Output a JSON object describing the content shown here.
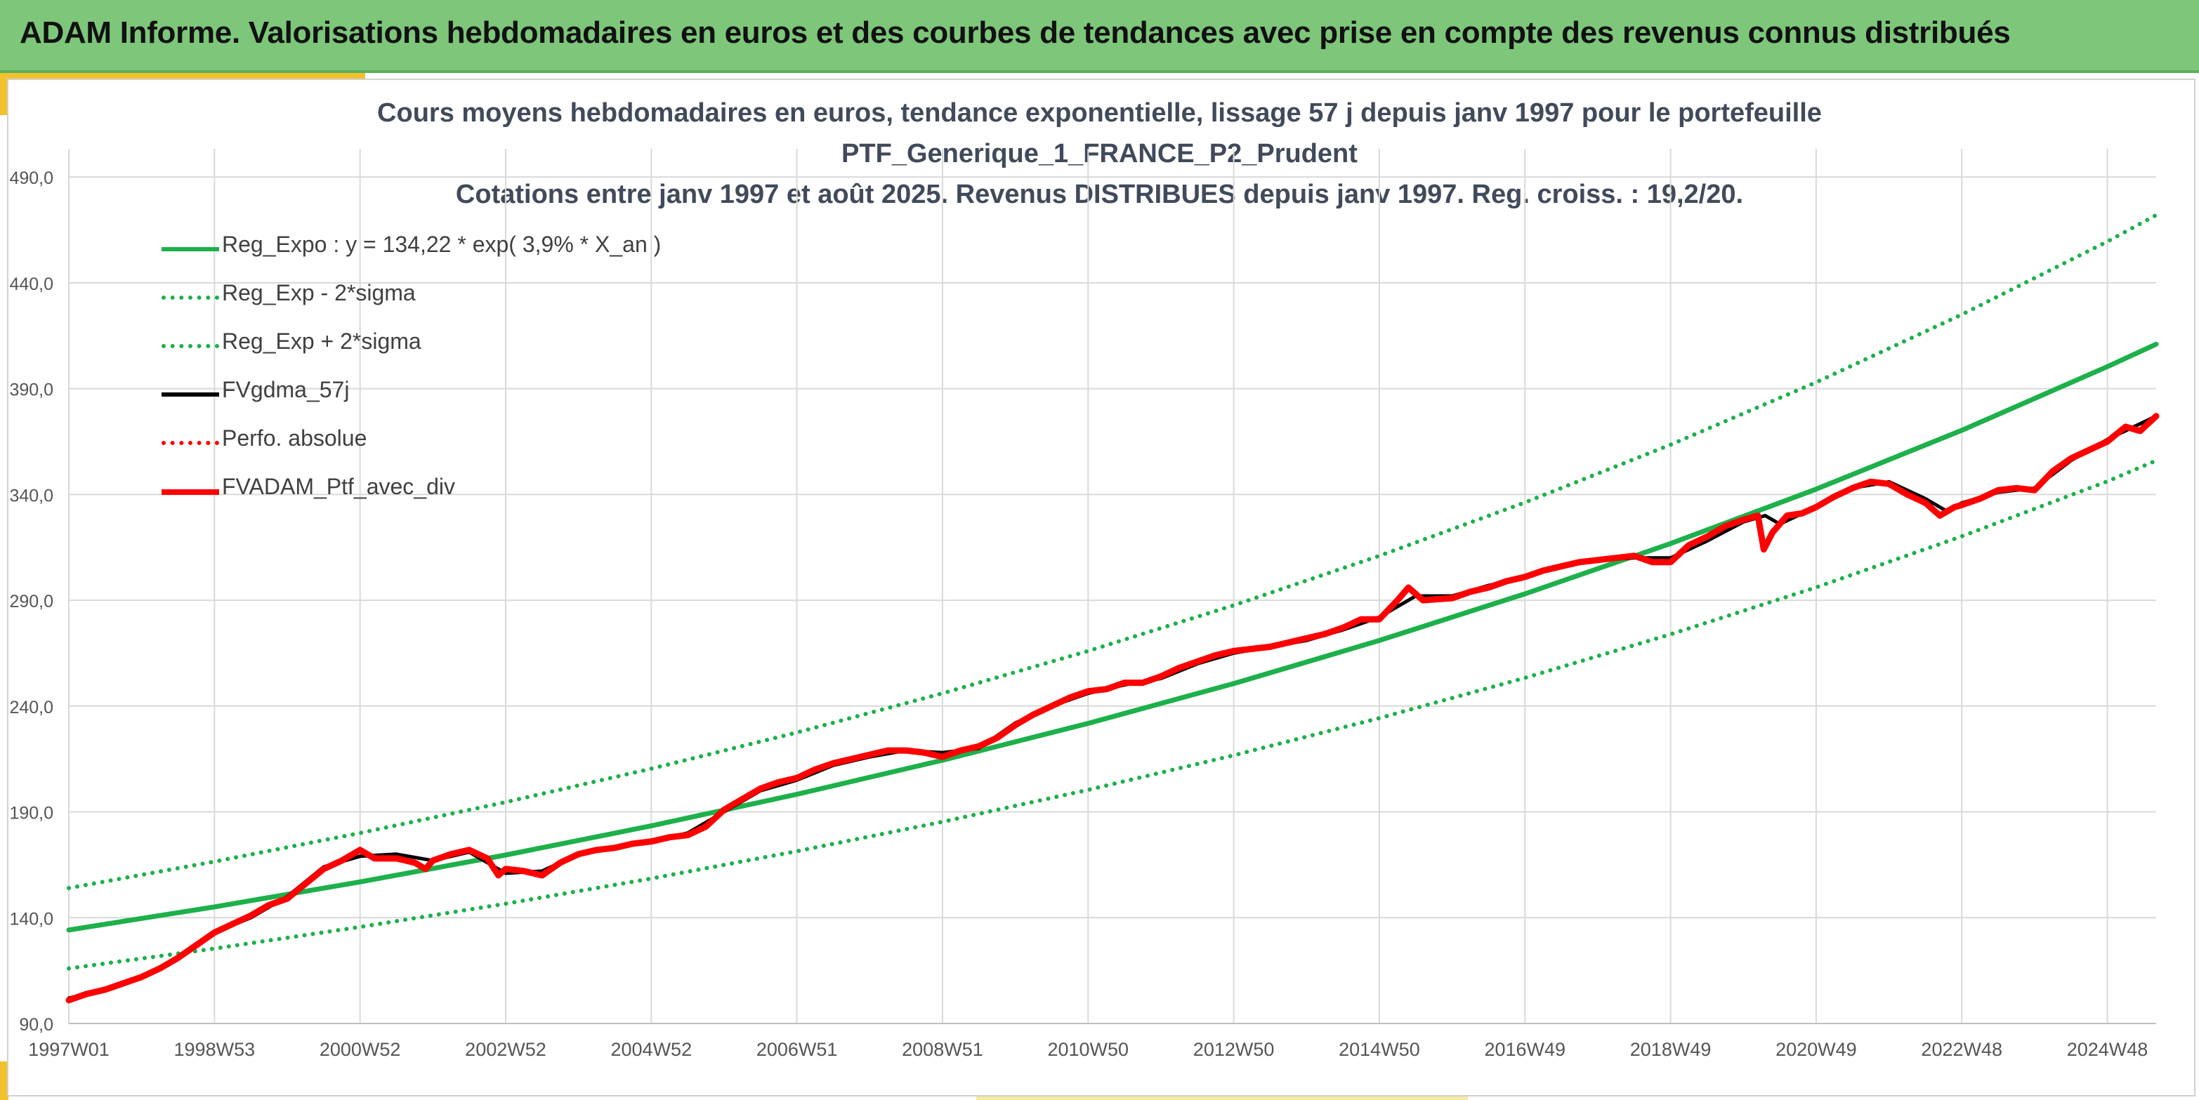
{
  "header": {
    "title": "ADAM Informe. Valorisations hebdomadaires en euros et des courbes de tendances avec prise en compte des revenus connus distribués"
  },
  "colors": {
    "banner": "#7dc67a",
    "accent": "#f2c12e",
    "trend_green": "#1db04b",
    "price_red": "#ff0000",
    "smooth_black": "#000000",
    "grid": "#d9d9d9"
  },
  "chart_data": {
    "type": "line",
    "title_lines": [
      "Cours moyens hebdomadaires en euros, tendance exponentielle, lissage 57 j depuis janv 1997 pour le portefeuille",
      "PTF_Generique_1_FRANCE_P2_Prudent",
      "Cotations entre janv 1997 et août 2025. Revenus DISTRIBUES depuis janv 1997. Reg. croiss. : 19,2/20."
    ],
    "xlabel": "",
    "ylabel": "",
    "ylim": [
      90,
      500
    ],
    "yticks": [
      "90,0",
      "140,0",
      "190,0",
      "240,0",
      "290,0",
      "340,0",
      "390,0",
      "440,0",
      "490,0"
    ],
    "xlim": [
      1997.0,
      2025.67
    ],
    "xticks": [
      {
        "label": "1997W01",
        "x": 1997.0
      },
      {
        "label": "1998W53",
        "x": 1999.0
      },
      {
        "label": "2000W52",
        "x": 2001.0
      },
      {
        "label": "2002W52",
        "x": 2003.0
      },
      {
        "label": "2004W52",
        "x": 2005.0
      },
      {
        "label": "2006W51",
        "x": 2007.0
      },
      {
        "label": "2008W51",
        "x": 2009.0
      },
      {
        "label": "2010W50",
        "x": 2011.0
      },
      {
        "label": "2012W50",
        "x": 2013.0
      },
      {
        "label": "2014W50",
        "x": 2015.0
      },
      {
        "label": "2016W49",
        "x": 2017.0
      },
      {
        "label": "2018W49",
        "x": 2019.0
      },
      {
        "label": "2020W49",
        "x": 2021.0
      },
      {
        "label": "2022W48",
        "x": 2023.0
      },
      {
        "label": "2024W48",
        "x": 2025.0
      }
    ],
    "grid": true,
    "legend_position": "top-left",
    "series": [
      {
        "name": "Reg_Expo : y = 134,22 * exp( 3,9% *  X_an )",
        "style": "solid",
        "color": "#1db04b",
        "points": [
          [
            1997.0,
            134.2
          ],
          [
            1999.0,
            145.1
          ],
          [
            2001.0,
            156.9
          ],
          [
            2003.0,
            169.6
          ],
          [
            2005.0,
            183.4
          ],
          [
            2007.0,
            198.3
          ],
          [
            2009.0,
            214.4
          ],
          [
            2011.0,
            231.8
          ],
          [
            2013.0,
            250.6
          ],
          [
            2015.0,
            271.0
          ],
          [
            2017.0,
            293.0
          ],
          [
            2019.0,
            316.8
          ],
          [
            2021.0,
            342.5
          ],
          [
            2023.0,
            370.3
          ],
          [
            2025.0,
            400.4
          ],
          [
            2025.67,
            411.0
          ]
        ]
      },
      {
        "name": "Reg_Exp - 2*sigma",
        "style": "dotted",
        "color": "#1db04b",
        "points": [
          [
            1997.0,
            116.0
          ],
          [
            1999.0,
            125.4
          ],
          [
            2001.0,
            135.6
          ],
          [
            2003.0,
            146.6
          ],
          [
            2005.0,
            158.5
          ],
          [
            2007.0,
            171.4
          ],
          [
            2009.0,
            185.3
          ],
          [
            2011.0,
            200.4
          ],
          [
            2013.0,
            216.7
          ],
          [
            2015.0,
            234.3
          ],
          [
            2017.0,
            253.3
          ],
          [
            2019.0,
            273.9
          ],
          [
            2021.0,
            296.1
          ],
          [
            2023.0,
            320.2
          ],
          [
            2025.0,
            346.2
          ],
          [
            2025.67,
            356.0
          ]
        ]
      },
      {
        "name": "Reg_Exp + 2*sigma",
        "style": "dotted",
        "color": "#1db04b",
        "points": [
          [
            1997.0,
            154.0
          ],
          [
            1999.0,
            166.5
          ],
          [
            2001.0,
            180.0
          ],
          [
            2003.0,
            194.6
          ],
          [
            2005.0,
            210.4
          ],
          [
            2007.0,
            227.5
          ],
          [
            2009.0,
            246.0
          ],
          [
            2011.0,
            266.0
          ],
          [
            2013.0,
            287.6
          ],
          [
            2015.0,
            311.0
          ],
          [
            2017.0,
            336.2
          ],
          [
            2019.0,
            363.5
          ],
          [
            2021.0,
            393.0
          ],
          [
            2023.0,
            425.0
          ],
          [
            2025.0,
            459.5
          ],
          [
            2025.67,
            472.0
          ]
        ]
      },
      {
        "name": "FVgdma_57j",
        "style": "solid",
        "color": "#000000",
        "points": [
          [
            1997.0,
            102.0
          ],
          [
            1997.5,
            106.0
          ],
          [
            1998.0,
            112.0
          ],
          [
            1998.5,
            121.0
          ],
          [
            1999.0,
            133.0
          ],
          [
            1999.5,
            140.0
          ],
          [
            2000.0,
            150.0
          ],
          [
            2000.5,
            164.0
          ],
          [
            2001.0,
            169.0
          ],
          [
            2001.5,
            170.0
          ],
          [
            2002.0,
            167.0
          ],
          [
            2002.5,
            171.0
          ],
          [
            2003.0,
            161.0
          ],
          [
            2003.5,
            162.0
          ],
          [
            2004.0,
            170.0
          ],
          [
            2004.5,
            173.0
          ],
          [
            2005.0,
            176.0
          ],
          [
            2005.5,
            180.0
          ],
          [
            2006.0,
            190.0
          ],
          [
            2006.5,
            200.0
          ],
          [
            2007.0,
            205.0
          ],
          [
            2007.5,
            212.0
          ],
          [
            2008.0,
            216.0
          ],
          [
            2008.5,
            219.0
          ],
          [
            2009.0,
            218.0
          ],
          [
            2009.5,
            220.0
          ],
          [
            2010.0,
            232.0
          ],
          [
            2010.5,
            240.0
          ],
          [
            2011.0,
            246.0
          ],
          [
            2011.5,
            250.0
          ],
          [
            2012.0,
            253.0
          ],
          [
            2012.5,
            260.0
          ],
          [
            2013.0,
            265.0
          ],
          [
            2013.5,
            268.0
          ],
          [
            2014.0,
            271.0
          ],
          [
            2014.5,
            276.0
          ],
          [
            2015.0,
            282.0
          ],
          [
            2015.5,
            292.0
          ],
          [
            2016.0,
            292.0
          ],
          [
            2016.5,
            297.0
          ],
          [
            2017.0,
            301.0
          ],
          [
            2017.5,
            306.0
          ],
          [
            2018.0,
            309.0
          ],
          [
            2018.5,
            310.0
          ],
          [
            2019.0,
            310.0
          ],
          [
            2019.5,
            318.0
          ],
          [
            2020.0,
            327.0
          ],
          [
            2020.3,
            330.0
          ],
          [
            2020.5,
            326.0
          ],
          [
            2021.0,
            334.0
          ],
          [
            2021.5,
            343.0
          ],
          [
            2022.0,
            346.0
          ],
          [
            2022.5,
            338.0
          ],
          [
            2022.8,
            332.0
          ],
          [
            2023.0,
            336.0
          ],
          [
            2023.5,
            341.0
          ],
          [
            2024.0,
            343.0
          ],
          [
            2024.5,
            356.0
          ],
          [
            2025.0,
            366.0
          ],
          [
            2025.67,
            377.0
          ]
        ]
      },
      {
        "name": "Perfo. absolue",
        "style": "dotted",
        "color": "#ff0000",
        "points": []
      },
      {
        "name": "FVADAM_Ptf_avec_div",
        "style": "solid",
        "color": "#ff0000",
        "points": [
          [
            1997.0,
            101.0
          ],
          [
            1997.25,
            104.0
          ],
          [
            1997.5,
            106.0
          ],
          [
            1997.75,
            109.0
          ],
          [
            1998.0,
            112.0
          ],
          [
            1998.25,
            116.0
          ],
          [
            1998.5,
            121.0
          ],
          [
            1998.75,
            127.0
          ],
          [
            1999.0,
            133.0
          ],
          [
            1999.25,
            137.0
          ],
          [
            1999.5,
            141.0
          ],
          [
            1999.75,
            146.0
          ],
          [
            2000.0,
            149.0
          ],
          [
            2000.25,
            156.0
          ],
          [
            2000.5,
            163.0
          ],
          [
            2000.75,
            167.0
          ],
          [
            2001.0,
            172.0
          ],
          [
            2001.2,
            168.0
          ],
          [
            2001.5,
            168.0
          ],
          [
            2001.75,
            166.0
          ],
          [
            2001.9,
            163.0
          ],
          [
            2002.0,
            167.0
          ],
          [
            2002.25,
            170.0
          ],
          [
            2002.5,
            172.0
          ],
          [
            2002.75,
            168.0
          ],
          [
            2002.9,
            160.0
          ],
          [
            2003.0,
            163.0
          ],
          [
            2003.25,
            162.0
          ],
          [
            2003.5,
            160.0
          ],
          [
            2003.75,
            166.0
          ],
          [
            2004.0,
            170.0
          ],
          [
            2004.25,
            172.0
          ],
          [
            2004.5,
            173.0
          ],
          [
            2004.75,
            175.0
          ],
          [
            2005.0,
            176.0
          ],
          [
            2005.25,
            178.0
          ],
          [
            2005.5,
            179.0
          ],
          [
            2005.75,
            183.0
          ],
          [
            2006.0,
            191.0
          ],
          [
            2006.25,
            196.0
          ],
          [
            2006.5,
            201.0
          ],
          [
            2006.75,
            204.0
          ],
          [
            2007.0,
            206.0
          ],
          [
            2007.25,
            210.0
          ],
          [
            2007.5,
            213.0
          ],
          [
            2007.75,
            215.0
          ],
          [
            2008.0,
            217.0
          ],
          [
            2008.25,
            219.0
          ],
          [
            2008.5,
            219.0
          ],
          [
            2008.75,
            218.0
          ],
          [
            2009.0,
            216.0
          ],
          [
            2009.25,
            219.0
          ],
          [
            2009.5,
            221.0
          ],
          [
            2009.75,
            225.0
          ],
          [
            2010.0,
            231.0
          ],
          [
            2010.25,
            236.0
          ],
          [
            2010.5,
            240.0
          ],
          [
            2010.75,
            244.0
          ],
          [
            2011.0,
            247.0
          ],
          [
            2011.25,
            248.0
          ],
          [
            2011.5,
            251.0
          ],
          [
            2011.75,
            251.0
          ],
          [
            2012.0,
            254.0
          ],
          [
            2012.25,
            258.0
          ],
          [
            2012.5,
            261.0
          ],
          [
            2012.75,
            264.0
          ],
          [
            2013.0,
            266.0
          ],
          [
            2013.25,
            267.0
          ],
          [
            2013.5,
            268.0
          ],
          [
            2013.75,
            270.0
          ],
          [
            2014.0,
            272.0
          ],
          [
            2014.25,
            274.0
          ],
          [
            2014.5,
            277.0
          ],
          [
            2014.75,
            281.0
          ],
          [
            2015.0,
            281.0
          ],
          [
            2015.25,
            290.0
          ],
          [
            2015.4,
            296.0
          ],
          [
            2015.6,
            290.0
          ],
          [
            2016.0,
            291.0
          ],
          [
            2016.25,
            294.0
          ],
          [
            2016.5,
            296.0
          ],
          [
            2016.75,
            299.0
          ],
          [
            2017.0,
            301.0
          ],
          [
            2017.25,
            304.0
          ],
          [
            2017.5,
            306.0
          ],
          [
            2017.75,
            308.0
          ],
          [
            2018.0,
            309.0
          ],
          [
            2018.25,
            310.0
          ],
          [
            2018.5,
            311.0
          ],
          [
            2018.75,
            308.0
          ],
          [
            2019.0,
            308.0
          ],
          [
            2019.25,
            316.0
          ],
          [
            2019.5,
            320.0
          ],
          [
            2019.75,
            325.0
          ],
          [
            2020.0,
            328.0
          ],
          [
            2020.2,
            330.0
          ],
          [
            2020.28,
            314.0
          ],
          [
            2020.4,
            322.0
          ],
          [
            2020.6,
            330.0
          ],
          [
            2020.8,
            331.0
          ],
          [
            2021.0,
            334.0
          ],
          [
            2021.25,
            339.0
          ],
          [
            2021.5,
            343.0
          ],
          [
            2021.75,
            346.0
          ],
          [
            2022.0,
            345.0
          ],
          [
            2022.25,
            340.0
          ],
          [
            2022.5,
            336.0
          ],
          [
            2022.7,
            330.0
          ],
          [
            2022.9,
            334.0
          ],
          [
            2023.0,
            335.0
          ],
          [
            2023.25,
            338.0
          ],
          [
            2023.5,
            342.0
          ],
          [
            2023.75,
            343.0
          ],
          [
            2024.0,
            342.0
          ],
          [
            2024.25,
            351.0
          ],
          [
            2024.5,
            357.0
          ],
          [
            2024.75,
            361.0
          ],
          [
            2025.0,
            365.0
          ],
          [
            2025.25,
            372.0
          ],
          [
            2025.45,
            370.0
          ],
          [
            2025.67,
            377.0
          ]
        ]
      }
    ]
  }
}
